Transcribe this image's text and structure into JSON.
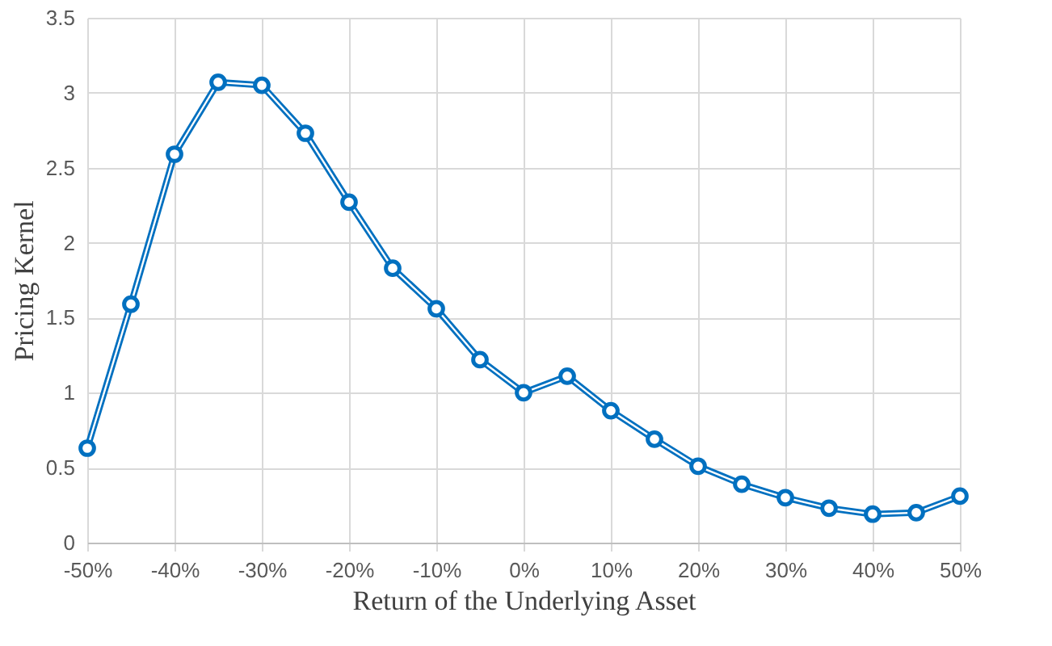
{
  "chart_data": {
    "type": "line",
    "xlabel": "Return of the Underlying Asset",
    "ylabel": "Pricing Kernel",
    "x": [
      -50,
      -45,
      -40,
      -35,
      -30,
      -25,
      -20,
      -15,
      -10,
      -5,
      0,
      5,
      10,
      15,
      20,
      25,
      30,
      35,
      40,
      45,
      50
    ],
    "series": [
      {
        "color": "#0070c0",
        "values": [
          0.63,
          1.59,
          2.59,
          3.07,
          3.05,
          2.73,
          2.27,
          1.83,
          1.56,
          1.22,
          1.0,
          1.11,
          0.88,
          0.69,
          0.51,
          0.39,
          0.3,
          0.23,
          0.19,
          0.2,
          0.31
        ]
      }
    ],
    "xlim": [
      -50,
      50
    ],
    "xticks": [
      {
        "value": -50,
        "label": "-50%"
      },
      {
        "value": -40,
        "label": "-40%"
      },
      {
        "value": -30,
        "label": "-30%"
      },
      {
        "value": -20,
        "label": "-20%"
      },
      {
        "value": -10,
        "label": "-10%"
      },
      {
        "value": 0,
        "label": "0%"
      },
      {
        "value": 10,
        "label": "10%"
      },
      {
        "value": 20,
        "label": "20%"
      },
      {
        "value": 30,
        "label": "30%"
      },
      {
        "value": 40,
        "label": "40%"
      },
      {
        "value": 50,
        "label": "50%"
      }
    ],
    "ylim": [
      0,
      3.5
    ],
    "yticks": [
      0,
      0.5,
      1,
      1.5,
      2,
      2.5,
      3,
      3.5
    ],
    "grid": true,
    "marker": "circle",
    "line_style": "solid"
  }
}
